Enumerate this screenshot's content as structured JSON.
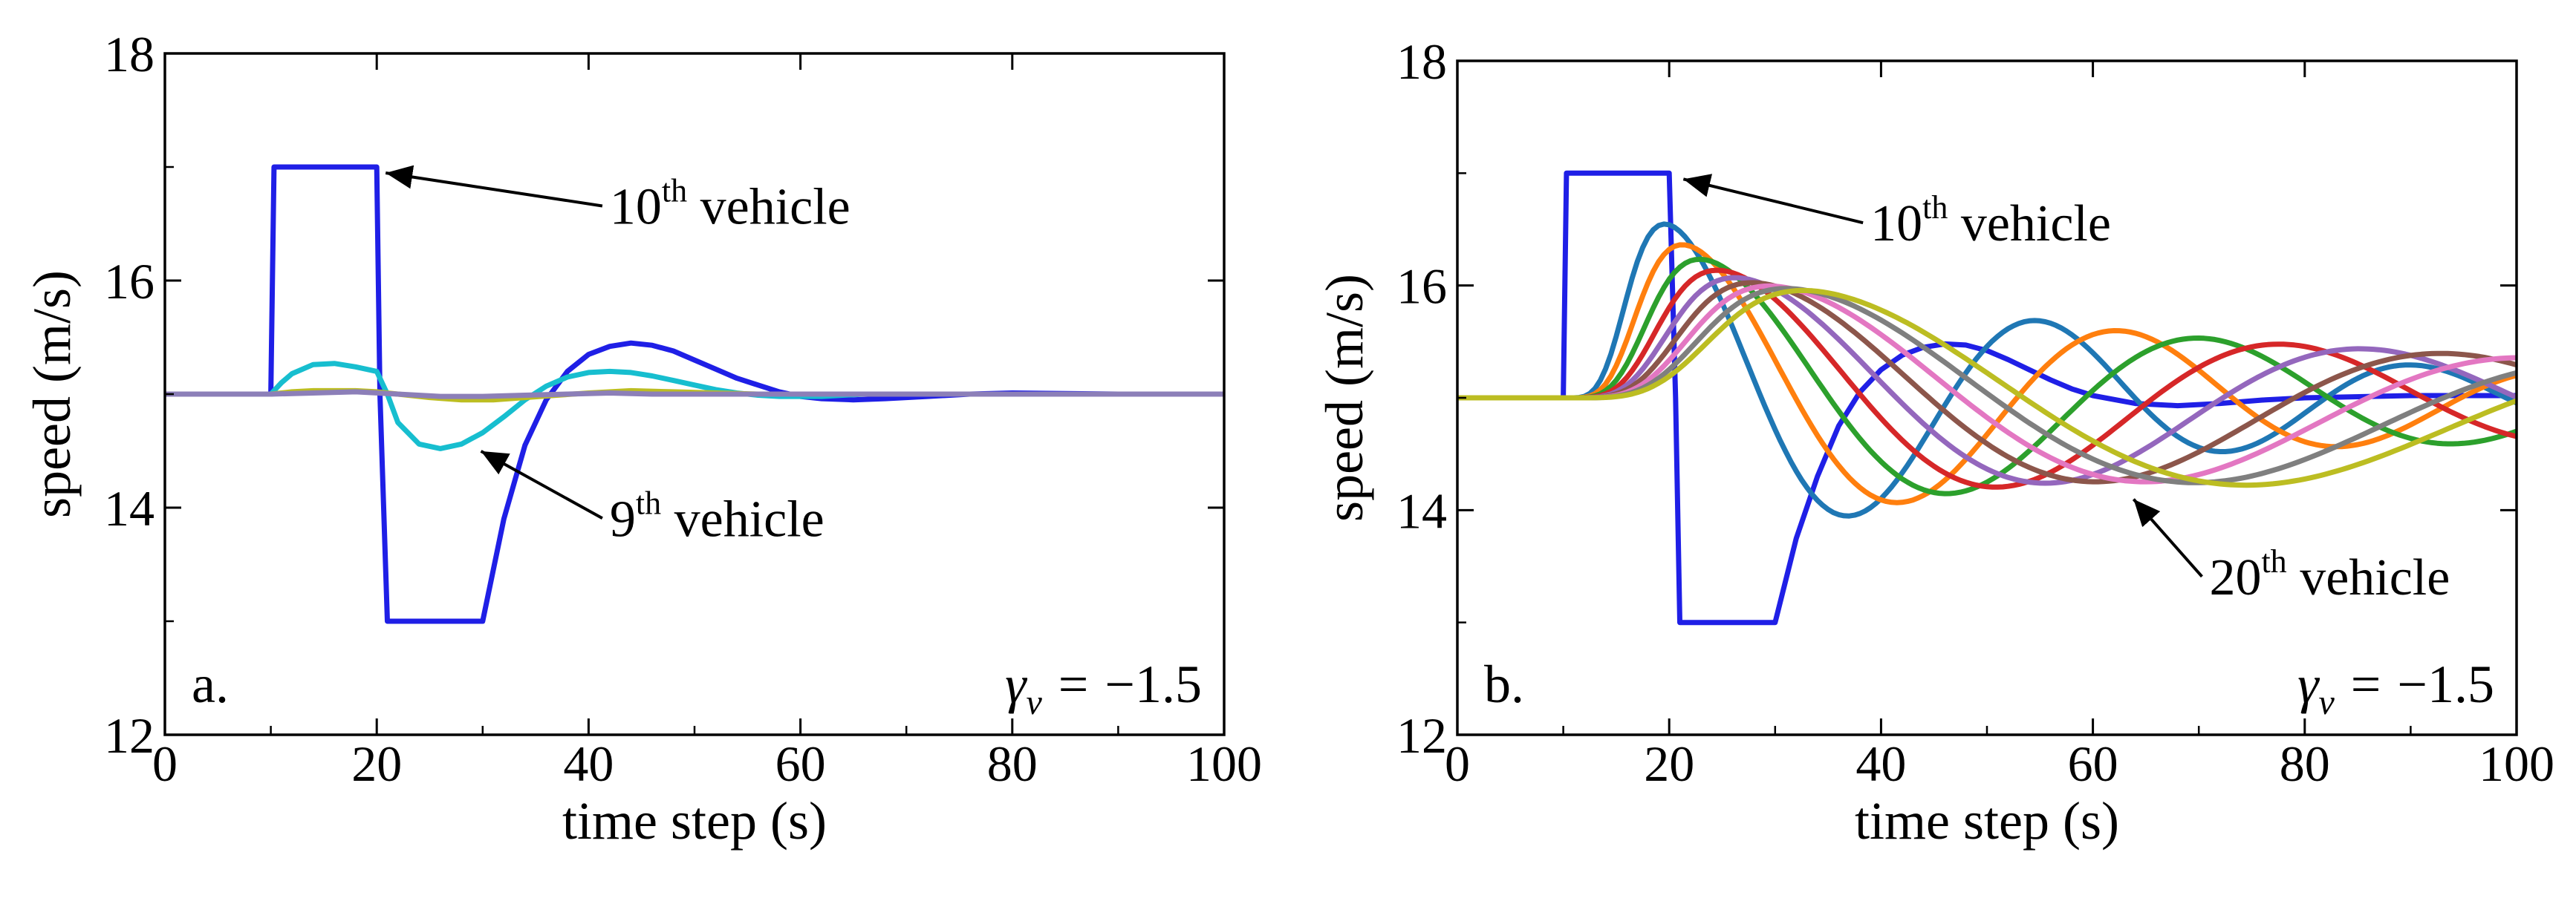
{
  "chart_data": [
    {
      "type": "line",
      "panel_label": "a.",
      "gamma": {
        "symbol": "γ",
        "subscript": "v",
        "equals": "=",
        "value": "−1.5"
      },
      "xlabel": "time step (s)",
      "ylabel": "speed (m/s)",
      "xlim": [
        0,
        100
      ],
      "ylim": [
        12,
        18
      ],
      "xticks": [
        0,
        20,
        40,
        60,
        80,
        100
      ],
      "yticks": [
        12,
        14,
        16,
        18
      ],
      "grid": false,
      "annotations": [
        {
          "base": "10",
          "sup": "th",
          "rest": " vehicle",
          "point": [
            20,
            17.0
          ],
          "text_at": [
            42,
            16.5
          ]
        },
        {
          "base": "9",
          "sup": "th",
          "rest": " vehicle",
          "point": [
            29,
            14.55
          ],
          "text_at": [
            42,
            13.75
          ]
        }
      ],
      "series": [
        {
          "color": "#1f1fe6",
          "x": [
            0,
            10,
            10.3,
            20,
            20.3,
            21,
            30,
            32,
            34,
            36,
            38,
            40,
            42,
            44,
            46,
            48,
            50,
            52,
            54,
            56,
            58,
            60,
            62,
            65,
            68,
            72,
            76,
            80,
            90,
            100
          ],
          "y": [
            15,
            15,
            17,
            17,
            15,
            13,
            13,
            13.9,
            14.55,
            14.95,
            15.2,
            15.35,
            15.42,
            15.45,
            15.43,
            15.38,
            15.3,
            15.22,
            15.14,
            15.08,
            15.02,
            14.98,
            14.96,
            14.95,
            14.96,
            14.98,
            15,
            15.01,
            15,
            15
          ]
        },
        {
          "color": "#17becf",
          "x": [
            0,
            10,
            11,
            12,
            14,
            16,
            18,
            20,
            21,
            22,
            24,
            26,
            28,
            30,
            32,
            34,
            36,
            38,
            40,
            42,
            44,
            46,
            48,
            50,
            52,
            54,
            56,
            58,
            60,
            62,
            64,
            66,
            70,
            80,
            100
          ],
          "y": [
            15,
            15,
            15.1,
            15.18,
            15.26,
            15.27,
            15.24,
            15.2,
            15.0,
            14.75,
            14.56,
            14.52,
            14.56,
            14.66,
            14.8,
            14.95,
            15.07,
            15.15,
            15.19,
            15.2,
            15.19,
            15.16,
            15.12,
            15.08,
            15.04,
            15.01,
            14.99,
            14.98,
            14.98,
            14.98,
            14.99,
            15,
            15,
            15,
            15
          ]
        },
        {
          "color": "#bcbd22",
          "x": [
            0,
            10,
            12,
            14,
            16,
            18,
            20,
            22,
            25,
            28,
            31,
            34,
            37,
            40,
            44,
            48,
            52,
            56,
            60,
            100
          ],
          "y": [
            15,
            15,
            15.02,
            15.03,
            15.03,
            15.03,
            15.02,
            15.0,
            14.97,
            14.95,
            14.95,
            14.97,
            14.99,
            15.01,
            15.03,
            15.02,
            15.01,
            15.0,
            15.0,
            15
          ]
        },
        {
          "color": "#8c7fb8",
          "x": [
            0,
            10,
            14,
            18,
            22,
            26,
            30,
            34,
            38,
            42,
            46,
            50,
            100
          ],
          "y": [
            15,
            15,
            15.01,
            15.02,
            15.0,
            14.98,
            14.98,
            14.99,
            15.0,
            15.01,
            15.0,
            15.0,
            15
          ]
        }
      ]
    },
    {
      "type": "line",
      "panel_label": "b.",
      "gamma": {
        "symbol": "γ",
        "subscript": "v",
        "equals": "=",
        "value": "−1.5"
      },
      "xlabel": "time step (s)",
      "ylabel": "speed (m/s)",
      "xlim": [
        0,
        100
      ],
      "ylim": [
        12,
        18
      ],
      "xticks": [
        0,
        20,
        40,
        60,
        80,
        100
      ],
      "yticks": [
        12,
        14,
        16,
        18
      ],
      "grid": false,
      "annotations": [
        {
          "base": "10",
          "sup": "th",
          "rest": " vehicle",
          "point": [
            20.5,
            17.0
          ],
          "text_at": [
            39,
            16.4
          ]
        },
        {
          "base": "20",
          "sup": "th",
          "rest": " vehicle",
          "point": [
            63,
            14.15
          ],
          "text_at": [
            71,
            13.25
          ]
        }
      ],
      "series": [
        {
          "color": "#1f1fe6",
          "x": [
            0,
            10,
            10.3,
            20,
            20.6,
            21,
            30,
            32,
            34,
            36,
            38,
            40,
            42,
            44,
            46,
            48,
            50,
            52,
            54,
            56,
            58,
            60,
            64,
            68,
            72,
            76,
            80,
            90,
            100
          ],
          "y": [
            15,
            15,
            17,
            17,
            15,
            13,
            13,
            13.75,
            14.3,
            14.75,
            15.05,
            15.25,
            15.38,
            15.45,
            15.48,
            15.47,
            15.42,
            15.34,
            15.25,
            15.16,
            15.08,
            15.02,
            14.95,
            14.93,
            14.95,
            14.98,
            15.0,
            15.02,
            15.02
          ]
        },
        {
          "color": "#1f77b4",
          "A": 1.95,
          "c": 0.155,
          "s": 10.4,
          "drift": -0.02
        },
        {
          "color": "#ff7f0e",
          "A": 1.72,
          "c": 0.14,
          "s": 12.2,
          "drift": -0.03
        },
        {
          "color": "#2ca02c",
          "A": 1.56,
          "c": 0.125,
          "s": 14.0,
          "drift": -0.04
        },
        {
          "color": "#d62728",
          "A": 1.44,
          "c": 0.112,
          "s": 15.8,
          "drift": -0.05
        },
        {
          "color": "#9467bd",
          "A": 1.36,
          "c": 0.102,
          "s": 17.6,
          "drift": -0.06
        },
        {
          "color": "#8c564b",
          "A": 1.31,
          "c": 0.094,
          "s": 19.4,
          "drift": -0.08
        },
        {
          "color": "#e377c2",
          "A": 1.28,
          "c": 0.087,
          "s": 21.2,
          "drift": -0.1
        },
        {
          "color": "#7f7f7f",
          "A": 1.26,
          "c": 0.082,
          "s": 23.0,
          "drift": -0.12
        },
        {
          "color": "#bcbd22",
          "A": 1.25,
          "c": 0.078,
          "s": 24.8,
          "drift": -0.15
        }
      ]
    }
  ]
}
